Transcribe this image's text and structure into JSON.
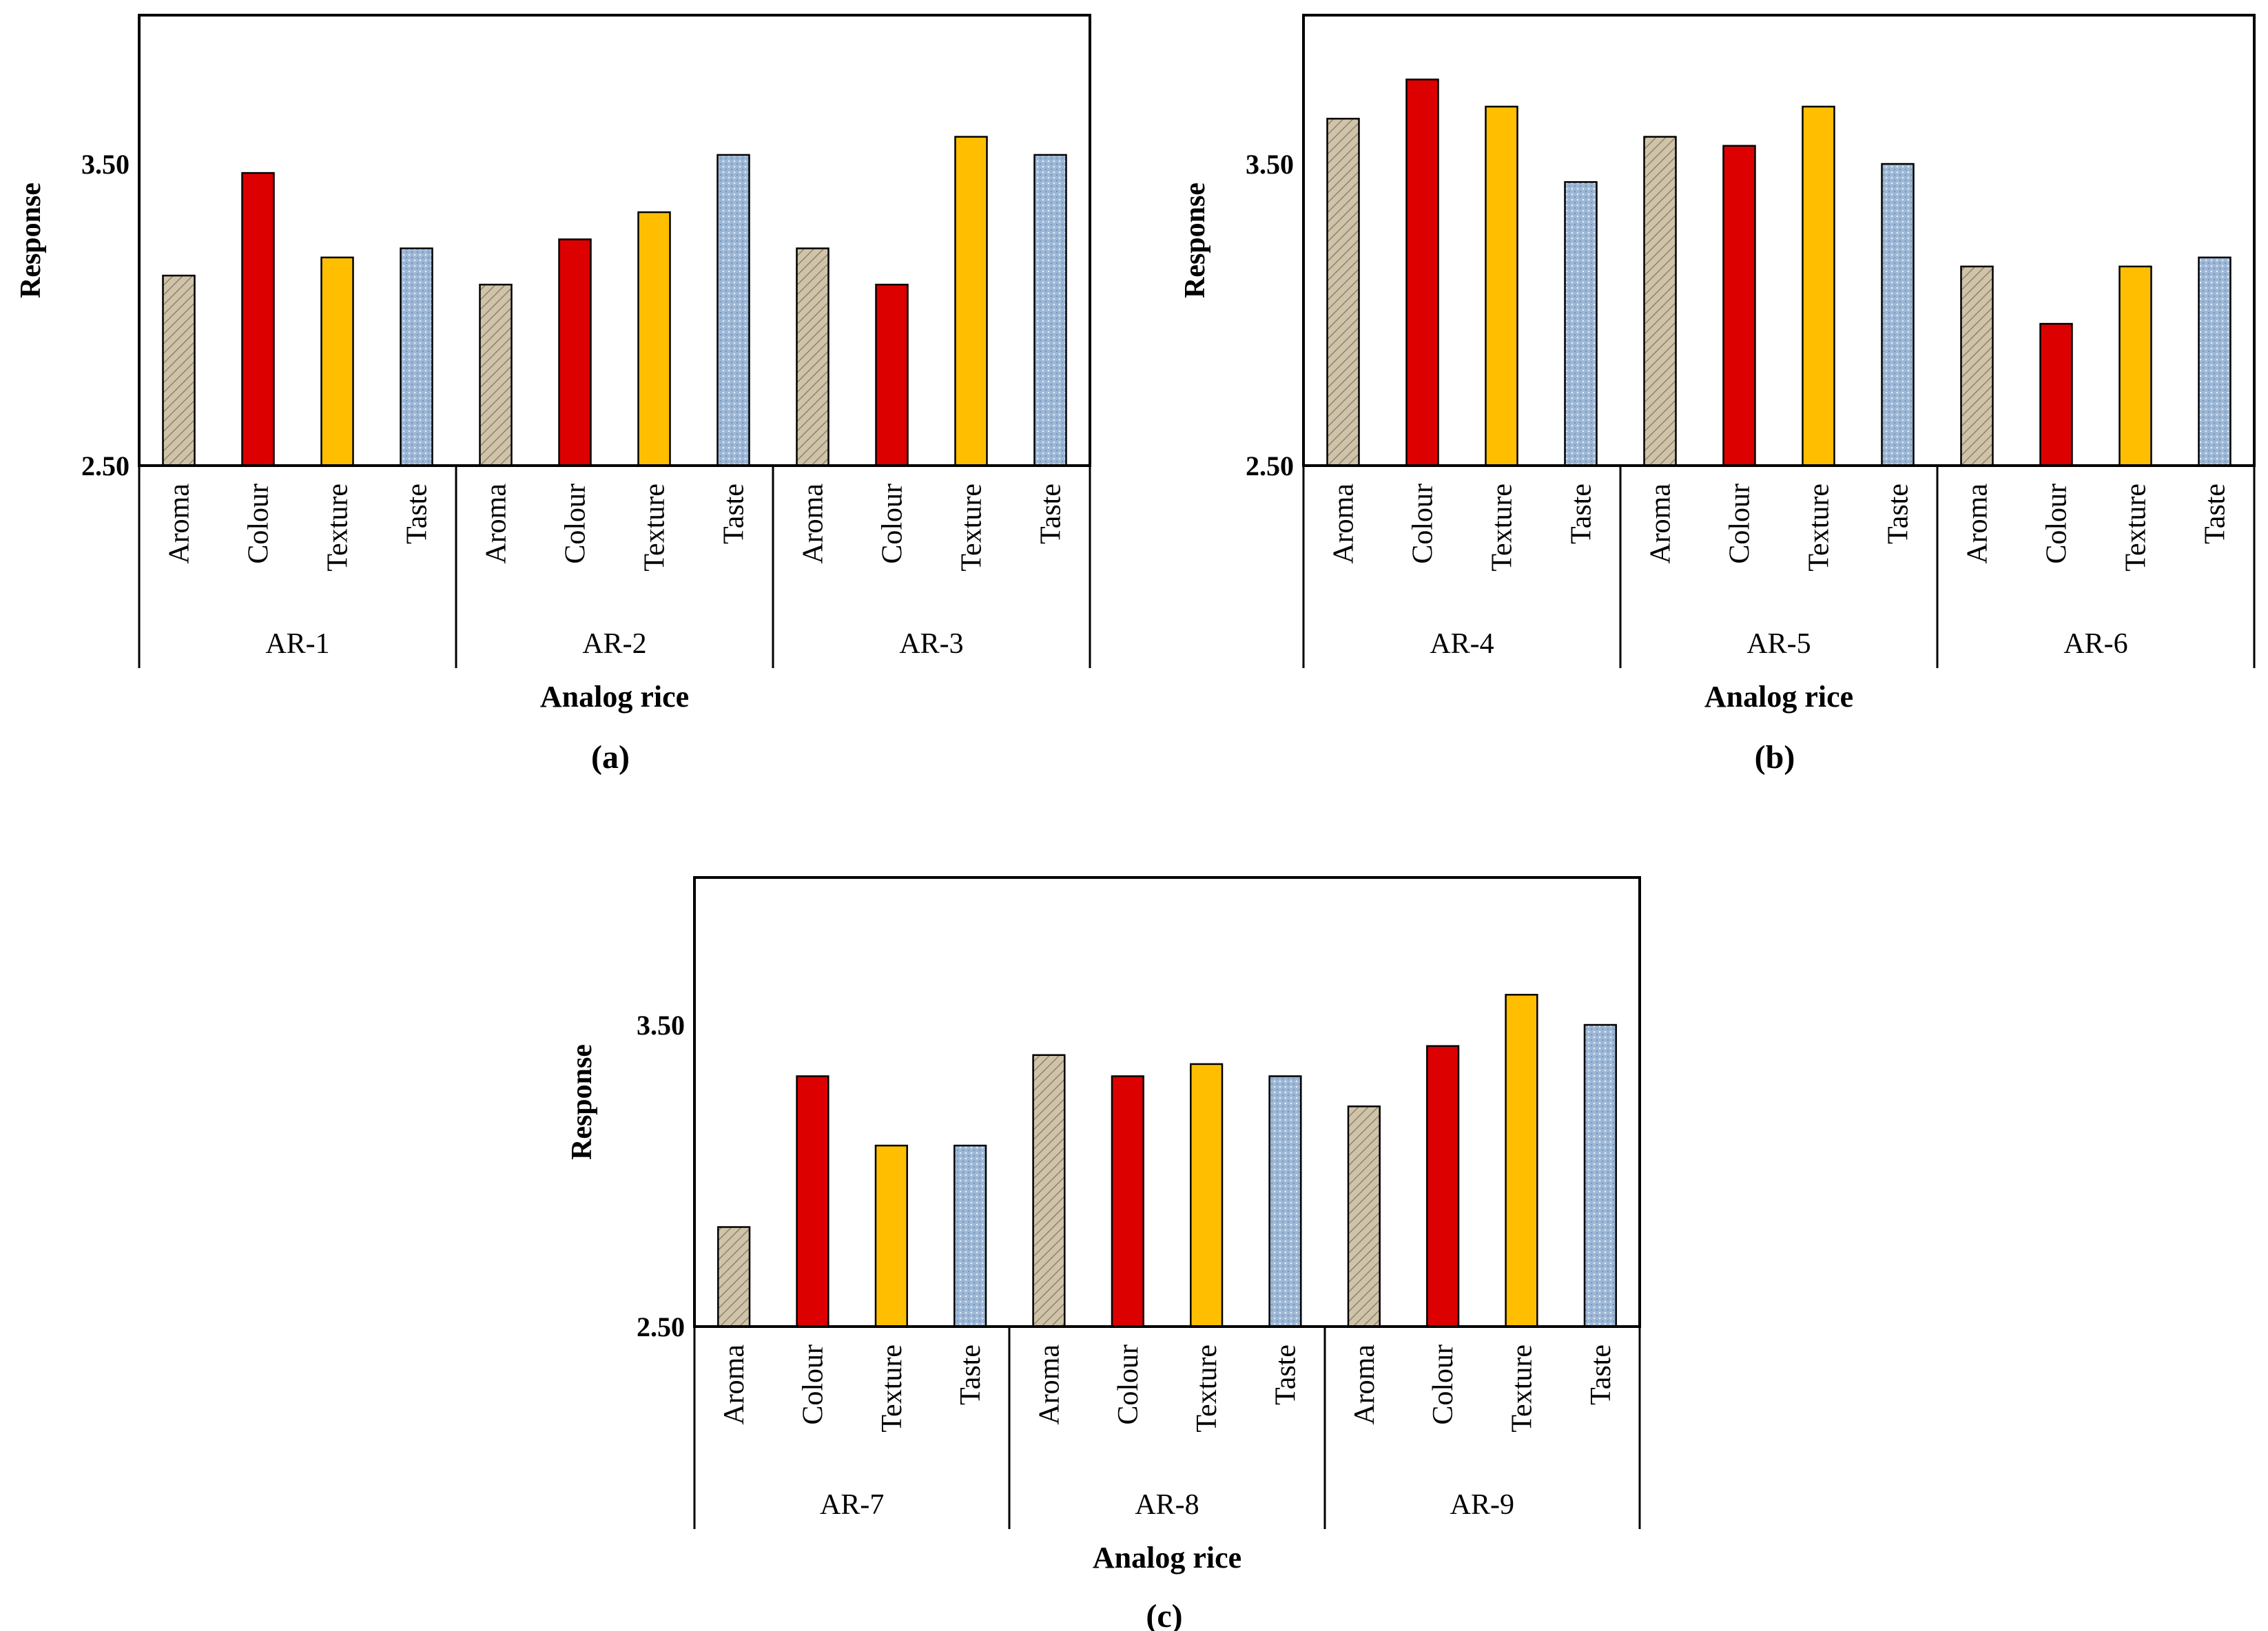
{
  "colors": {
    "Aroma": "#c9bda4",
    "Colour": "#dd0000",
    "Texture": "#ffbf00",
    "Taste": "#9ab4d4"
  },
  "patterns": {
    "Aroma": "diagonal-hatch",
    "Colour": "solid",
    "Texture": "solid",
    "Taste": "dotted-hatch"
  },
  "chart_data": [
    {
      "type": "bar",
      "panel_label": "(a)",
      "ylabel": "Response",
      "xlabel": "Analog rice",
      "ylim": [
        2.5,
        4.0
      ],
      "yticks": [
        "2.50",
        "3.50"
      ],
      "categories": [
        "Aroma",
        "Colour",
        "Texture",
        "Taste"
      ],
      "groups": [
        {
          "name": "AR-1",
          "values": [
            3.13,
            3.47,
            3.19,
            3.22
          ]
        },
        {
          "name": "AR-2",
          "values": [
            3.1,
            3.25,
            3.34,
            3.53
          ]
        },
        {
          "name": "AR-3",
          "values": [
            3.22,
            3.1,
            3.59,
            3.53
          ]
        }
      ]
    },
    {
      "type": "bar",
      "panel_label": "(b)",
      "ylabel": "Response",
      "xlabel": "Analog rice",
      "ylim": [
        2.5,
        4.0
      ],
      "yticks": [
        "2.50",
        "3.50"
      ],
      "categories": [
        "Aroma",
        "Colour",
        "Texture",
        "Taste"
      ],
      "groups": [
        {
          "name": "AR-4",
          "values": [
            3.65,
            3.78,
            3.69,
            3.44
          ]
        },
        {
          "name": "AR-5",
          "values": [
            3.59,
            3.56,
            3.69,
            3.5
          ]
        },
        {
          "name": "AR-6",
          "values": [
            3.16,
            2.97,
            3.16,
            3.19
          ]
        }
      ]
    },
    {
      "type": "bar",
      "panel_label": "(c)",
      "ylabel": "Response",
      "xlabel": "Analog rice",
      "ylim": [
        2.5,
        4.0
      ],
      "yticks": [
        "2.50",
        "3.50"
      ],
      "categories": [
        "Aroma",
        "Colour",
        "Texture",
        "Taste"
      ],
      "groups": [
        {
          "name": "AR-7",
          "values": [
            2.83,
            3.33,
            3.1,
            3.1
          ]
        },
        {
          "name": "AR-8",
          "values": [
            3.4,
            3.33,
            3.37,
            3.33
          ]
        },
        {
          "name": "AR-9",
          "values": [
            3.23,
            3.43,
            3.6,
            3.5
          ]
        }
      ]
    }
  ]
}
